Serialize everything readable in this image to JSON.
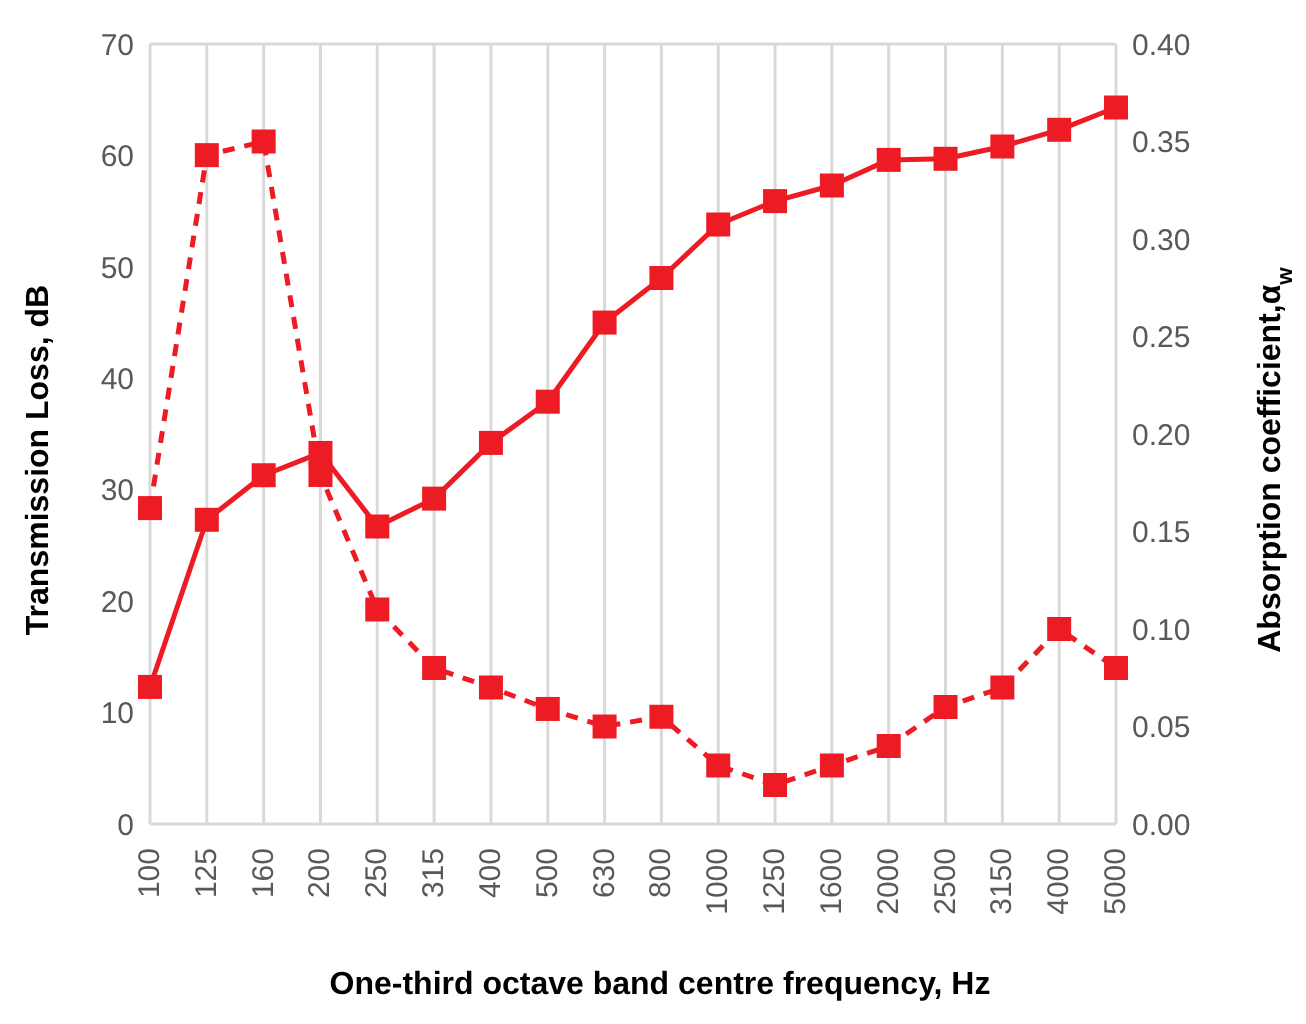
{
  "chart_data": {
    "type": "line",
    "xlabel": "One-third octave band centre frequency, Hz",
    "ylabel": "Transmission Loss, dB",
    "y2label": "Absorption coefficient,α$_{w}$",
    "categories": [
      "100",
      "125",
      "160",
      "200",
      "250",
      "315",
      "400",
      "500",
      "630",
      "800",
      "1000",
      "1250",
      "1600",
      "2000",
      "2500",
      "3150",
      "4000",
      "5000"
    ],
    "series": [
      {
        "color": "#ed1c24",
        "line_style": "solid",
        "values": [
          12.3,
          27.3,
          31.3,
          33.3,
          26.7,
          29.2,
          34.2,
          37.9,
          45,
          49,
          53.8,
          55.9,
          57.3,
          59.6,
          59.7,
          60.8,
          62.3,
          64.3
        ]
      },
      {
        "color": "#ed1c24",
        "line_style": "dashed",
        "axis": "y2",
        "values": [
          0.162,
          0.343,
          0.35,
          0.179,
          0.11,
          0.08,
          0.07,
          0.059,
          0.05,
          0.055,
          0.03,
          0.02,
          0.03,
          0.04,
          0.06,
          0.07,
          0.1,
          0.08
        ]
      }
    ],
    "ylim": [
      0,
      70
    ],
    "yticks": [
      0,
      10,
      20,
      30,
      40,
      50,
      60,
      70
    ],
    "y2lim": [
      0,
      0.4
    ],
    "y2ticks": [
      {
        "value": 0,
        "label": "0.00"
      },
      {
        "value": 0.05,
        "label": "0.05"
      },
      {
        "value": 0.1,
        "label": "0.10"
      },
      {
        "value": 0.15,
        "label": "0.15"
      },
      {
        "value": 0.2,
        "label": "0.20"
      },
      {
        "value": 0.25,
        "label": "0.25"
      },
      {
        "value": 0.3,
        "label": "0.30"
      },
      {
        "value": 0.35,
        "label": "0.35"
      },
      {
        "value": 0.4,
        "label": "0.40"
      }
    ],
    "grid": true,
    "legend": false,
    "marker": "square"
  }
}
